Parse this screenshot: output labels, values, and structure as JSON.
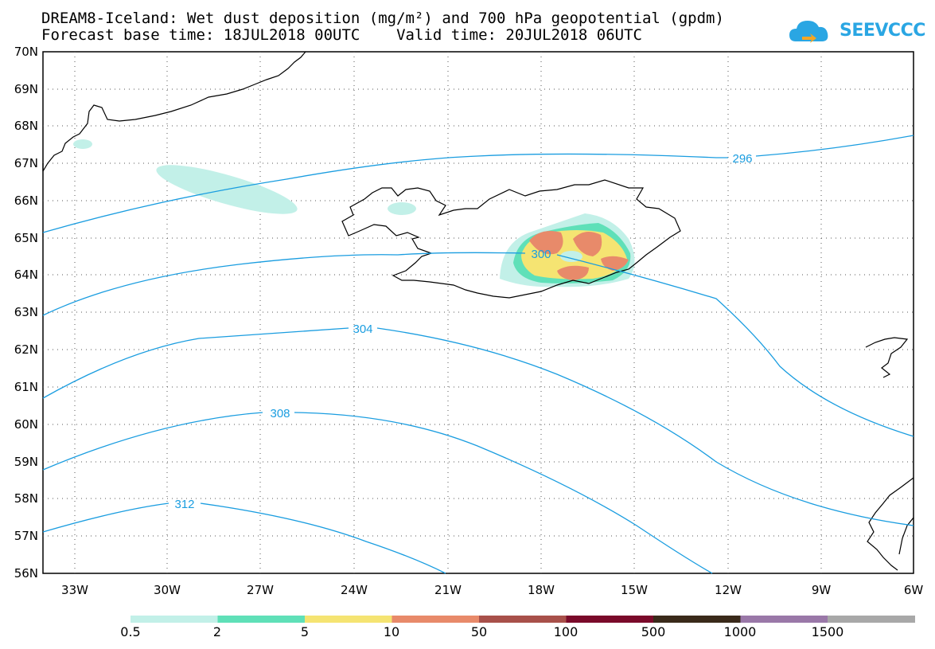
{
  "title": {
    "line1": "DREAM8-Iceland: Wet dust deposition (mg/m²) and 700 hPa geopotential (gpdm)",
    "line2": "Forecast base time: 18JUL2018 00UTC    Valid time: 20JUL2018 06UTC"
  },
  "logo": {
    "text": "SEEVCCC",
    "icon": "cloud-logo-icon"
  },
  "map": {
    "lat_labels": [
      "70N",
      "69N",
      "68N",
      "67N",
      "66N",
      "65N",
      "64N",
      "63N",
      "62N",
      "61N",
      "60N",
      "59N",
      "58N",
      "57N",
      "56N"
    ],
    "lon_labels": [
      "33W",
      "30W",
      "27W",
      "24W",
      "21W",
      "18W",
      "15W",
      "12W",
      "9W",
      "6W"
    ],
    "contour_labels": [
      "296",
      "300",
      "304",
      "308",
      "312"
    ],
    "contour_color": "#1a9de0"
  },
  "colorbar": {
    "labels": [
      "0.5",
      "2",
      "5",
      "10",
      "50",
      "100",
      "500",
      "1000",
      "1500"
    ],
    "colors": [
      "#c2f0e8",
      "#5fe0b8",
      "#f5e472",
      "#e88a6a",
      "#a8504a",
      "#7a0a2a",
      "#3a2a1a",
      "#9a78a8",
      "#a8a8a8"
    ]
  }
}
